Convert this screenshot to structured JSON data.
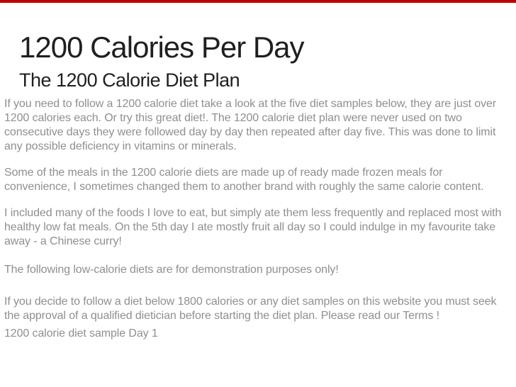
{
  "slide": {
    "title": "1200 Calories Per Day",
    "subtitle": "The 1200 Calorie Diet Plan",
    "paragraphs": [
      "If you need to follow a 1200 calorie diet take a look at the five diet samples below, they are just over 1200 calories each. Or try this great diet!. The 1200 calorie diet plan were never used on two consecutive days they were followed day by day then repeated after day five. This was done to limit any possible deficiency in vitamins or minerals.",
      "Some of the meals in the 1200 calorie diets are made up of ready made frozen meals for convenience, I sometimes changed them to another brand with roughly the same calorie content.",
      "I included many of the foods I love to eat, but simply ate them less frequently and replaced most with healthy low fat meals. On the 5th day I ate mostly fruit all day so I could indulge in my favourite take away - a Chinese curry!",
      "The following low-calorie diets are for demonstration purposes only!",
      "If you decide to follow a diet below 1800 calories or any diet samples on this website you must seek the approval of a qualified dietician before starting the diet plan. Please read our Terms !",
      "1200 calorie diet sample Day 1"
    ],
    "colors": {
      "accent": "#c00000",
      "title_text": "#1f1f1f",
      "body_text": "#8f8f8f",
      "background": "#ffffff"
    }
  }
}
